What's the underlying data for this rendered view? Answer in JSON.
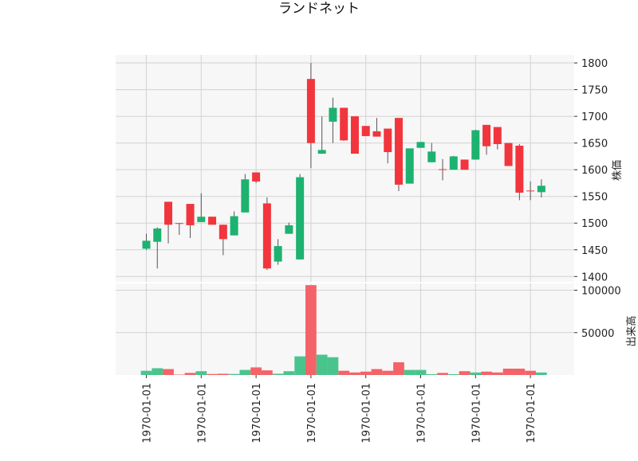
{
  "chart_data": {
    "type": "candlestick",
    "title": "ランドネット",
    "price_panel": {
      "ylabel": "株価",
      "ylim": [
        1390,
        1815
      ],
      "yticks": [
        1400,
        1450,
        1500,
        1550,
        1600,
        1650,
        1700,
        1750,
        1800
      ]
    },
    "volume_panel": {
      "ylabel": "出来高",
      "ylim": [
        0,
        108000
      ],
      "yticks": [
        50000,
        100000
      ]
    },
    "xtick_labels": [
      "1970-01-01",
      "1970-01-01",
      "1970-01-01",
      "1970-01-01",
      "1970-01-01",
      "1970-01-01",
      "1970-01-01",
      "1970-01-01"
    ],
    "xtick_indices": [
      0,
      5,
      10,
      15,
      20,
      25,
      30,
      35
    ],
    "colors": {
      "up": "#1db270",
      "down": "#f2353d",
      "up_volume": "#4ac48d",
      "down_volume": "#f46368",
      "wick": "#555555",
      "panel_bg": "#f7f7f7",
      "grid": "#d2d2d2"
    },
    "candles": [
      {
        "open": 1452,
        "high": 1480,
        "low": 1450,
        "close": 1467,
        "volume": 5000
      },
      {
        "open": 1465,
        "high": 1492,
        "low": 1415,
        "close": 1490,
        "volume": 8000
      },
      {
        "open": 1540,
        "high": 1540,
        "low": 1462,
        "close": 1497,
        "volume": 7000
      },
      {
        "open": 1500,
        "high": 1500,
        "low": 1478,
        "close": 1499,
        "volume": 500
      },
      {
        "open": 1536,
        "high": 1536,
        "low": 1472,
        "close": 1496,
        "volume": 2500
      },
      {
        "open": 1502,
        "high": 1556,
        "low": 1502,
        "close": 1512,
        "volume": 4500
      },
      {
        "open": 1512,
        "high": 1512,
        "low": 1497,
        "close": 1497,
        "volume": 1200
      },
      {
        "open": 1497,
        "high": 1497,
        "low": 1440,
        "close": 1470,
        "volume": 1500
      },
      {
        "open": 1477,
        "high": 1522,
        "low": 1477,
        "close": 1513,
        "volume": 1200
      },
      {
        "open": 1520,
        "high": 1592,
        "low": 1520,
        "close": 1582,
        "volume": 6000
      },
      {
        "open": 1595,
        "high": 1595,
        "low": 1575,
        "close": 1578,
        "volume": 9000
      },
      {
        "open": 1537,
        "high": 1548,
        "low": 1412,
        "close": 1415,
        "volume": 5500
      },
      {
        "open": 1428,
        "high": 1470,
        "low": 1422,
        "close": 1457,
        "volume": 1500
      },
      {
        "open": 1480,
        "high": 1501,
        "low": 1480,
        "close": 1496,
        "volume": 4500
      },
      {
        "open": 1432,
        "high": 1592,
        "low": 1432,
        "close": 1586,
        "volume": 22000
      },
      {
        "open": 1770,
        "high": 1800,
        "low": 1603,
        "close": 1650,
        "volume": 106000
      },
      {
        "open": 1630,
        "high": 1700,
        "low": 1630,
        "close": 1637,
        "volume": 24000
      },
      {
        "open": 1690,
        "high": 1735,
        "low": 1650,
        "close": 1716,
        "volume": 21000
      },
      {
        "open": 1716,
        "high": 1716,
        "low": 1654,
        "close": 1655,
        "volume": 5000
      },
      {
        "open": 1700,
        "high": 1700,
        "low": 1630,
        "close": 1630,
        "volume": 3000
      },
      {
        "open": 1682,
        "high": 1682,
        "low": 1663,
        "close": 1663,
        "volume": 4000
      },
      {
        "open": 1672,
        "high": 1697,
        "low": 1662,
        "close": 1662,
        "volume": 7000
      },
      {
        "open": 1677,
        "high": 1677,
        "low": 1612,
        "close": 1633,
        "volume": 5000
      },
      {
        "open": 1697,
        "high": 1697,
        "low": 1560,
        "close": 1572,
        "volume": 15000
      },
      {
        "open": 1574,
        "high": 1640,
        "low": 1574,
        "close": 1640,
        "volume": 6000
      },
      {
        "open": 1641,
        "high": 1652,
        "low": 1641,
        "close": 1652,
        "volume": 6000
      },
      {
        "open": 1614,
        "high": 1650,
        "low": 1614,
        "close": 1634,
        "volume": 1000
      },
      {
        "open": 1601,
        "high": 1620,
        "low": 1580,
        "close": 1600,
        "volume": 2500
      },
      {
        "open": 1600,
        "high": 1626,
        "low": 1600,
        "close": 1625,
        "volume": 1000
      },
      {
        "open": 1619,
        "high": 1619,
        "low": 1600,
        "close": 1600,
        "volume": 4500
      },
      {
        "open": 1619,
        "high": 1675,
        "low": 1619,
        "close": 1674,
        "volume": 3000
      },
      {
        "open": 1684,
        "high": 1684,
        "low": 1628,
        "close": 1644,
        "volume": 4000
      },
      {
        "open": 1680,
        "high": 1680,
        "low": 1638,
        "close": 1648,
        "volume": 3000
      },
      {
        "open": 1650,
        "high": 1650,
        "low": 1607,
        "close": 1607,
        "volume": 7500
      },
      {
        "open": 1645,
        "high": 1648,
        "low": 1543,
        "close": 1557,
        "volume": 7500
      },
      {
        "open": 1561,
        "high": 1578,
        "low": 1543,
        "close": 1560,
        "volume": 5000
      },
      {
        "open": 1558,
        "high": 1582,
        "low": 1548,
        "close": 1570,
        "volume": 3000
      }
    ]
  }
}
